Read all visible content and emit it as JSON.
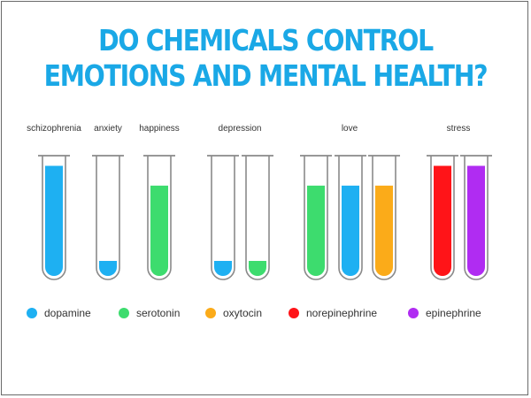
{
  "title": {
    "line1": "DO CHEMICALS CONTROL",
    "line2": "EMOTIONS AND MENTAL HEALTH?"
  },
  "colors": {
    "dopamine": "#1eb0f2",
    "serotonin": "#3ddc6e",
    "oxytocin": "#fbab19",
    "norepinephrine": "#ff1418",
    "epinephrine": "#b02cf2"
  },
  "groups": [
    {
      "label": "schizophrenia",
      "tubes": [
        {
          "chemical": "dopamine",
          "level": 0.95
        }
      ]
    },
    {
      "label": "anxiety",
      "tubes": [
        {
          "chemical": "dopamine",
          "level": 0.13
        }
      ]
    },
    {
      "label": "happiness",
      "tubes": [
        {
          "chemical": "serotonin",
          "level": 0.78
        }
      ]
    },
    {
      "label": "depression",
      "tubes": [
        {
          "chemical": "dopamine",
          "level": 0.13
        },
        {
          "chemical": "serotonin",
          "level": 0.13
        }
      ]
    },
    {
      "label": "love",
      "tubes": [
        {
          "chemical": "serotonin",
          "level": 0.78
        },
        {
          "chemical": "dopamine",
          "level": 0.78
        },
        {
          "chemical": "oxytocin",
          "level": 0.78
        }
      ]
    },
    {
      "label": "stress",
      "tubes": [
        {
          "chemical": "norepinephrine",
          "level": 0.95
        },
        {
          "chemical": "epinephrine",
          "level": 0.95
        }
      ]
    }
  ],
  "legend": [
    {
      "chemical": "dopamine",
      "label": "dopamine"
    },
    {
      "chemical": "serotonin",
      "label": "serotonin"
    },
    {
      "chemical": "oxytocin",
      "label": "oxytocin"
    },
    {
      "chemical": "norepinephrine",
      "label": "norepinephrine"
    },
    {
      "chemical": "epinephrine",
      "label": "epinephrine"
    }
  ]
}
